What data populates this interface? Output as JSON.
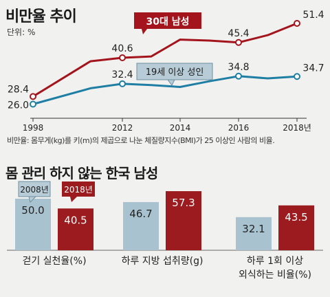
{
  "line_panel": {
    "title": "비만율 추이",
    "unit": "단위: %",
    "note": "비만율: 몸무게(kg)를 키(m)의 제곱으로 나눈 체질량지수(BMI)가 25 이상인 사람의 비율."
  },
  "bar_panel": {
    "title": "몸 관리 하지 않는 한국 남성"
  },
  "colors": {
    "male30": "#a3141c",
    "adult19": "#1f7ea3",
    "bar2008": "#a9c2d0",
    "bar2018": "#9b1b1f",
    "background": "#f1f1ef"
  },
  "chart_data": [
    {
      "type": "line",
      "title": "비만율 추이",
      "unit": "%",
      "x_ticks": [
        "1998",
        "2012",
        "2014",
        "2016",
        "2018년"
      ],
      "series": [
        {
          "name": "30대 남성",
          "color": "#a3141c",
          "x": [
            1998,
            2007,
            2012,
            2013,
            2014,
            2015,
            2016,
            2017,
            2018
          ],
          "y": [
            28.4,
            39.5,
            40.6,
            41.0,
            46.3,
            46.0,
            45.4,
            47.7,
            51.4
          ],
          "labels": [
            {
              "x": 1998,
              "text": "28.4"
            },
            {
              "x": 2012,
              "text": "40.6"
            },
            {
              "x": 2016,
              "text": "45.4"
            },
            {
              "x": 2018,
              "text": "51.4"
            }
          ],
          "markers": [
            1998,
            2012,
            2016,
            2018
          ]
        },
        {
          "name": "19세 이상 성인",
          "color": "#1f7ea3",
          "x": [
            1998,
            2007,
            2012,
            2013,
            2014,
            2015,
            2016,
            2017,
            2018
          ],
          "y": [
            26.0,
            31.0,
            32.4,
            32.0,
            31.4,
            33.2,
            34.8,
            34.1,
            34.7
          ],
          "labels": [
            {
              "x": 1998,
              "text": "26.0"
            },
            {
              "x": 2012,
              "text": "32.4"
            },
            {
              "x": 2016,
              "text": "34.8"
            },
            {
              "x": 2018,
              "text": "34.7"
            }
          ],
          "markers": [
            1998,
            2012,
            2016,
            2018
          ]
        }
      ],
      "ylim": [
        22,
        54
      ],
      "grid": false
    },
    {
      "type": "bar",
      "title": "몸 관리 하지 않는 한국 남성",
      "legend": [
        "2008년",
        "2018년"
      ],
      "categories": [
        "걷기 실천율(%)",
        "하루 지방 섭취량(g)",
        "하루 1회 이상\n외식하는 비율(%)"
      ],
      "series": [
        {
          "name": "2008년",
          "values": [
            50.0,
            46.7,
            32.1
          ],
          "labels": [
            "50.0",
            "46.7",
            "32.1"
          ]
        },
        {
          "name": "2018년",
          "values": [
            40.5,
            57.3,
            43.5
          ],
          "labels": [
            "40.5",
            "57.3",
            "43.5"
          ]
        }
      ]
    }
  ]
}
